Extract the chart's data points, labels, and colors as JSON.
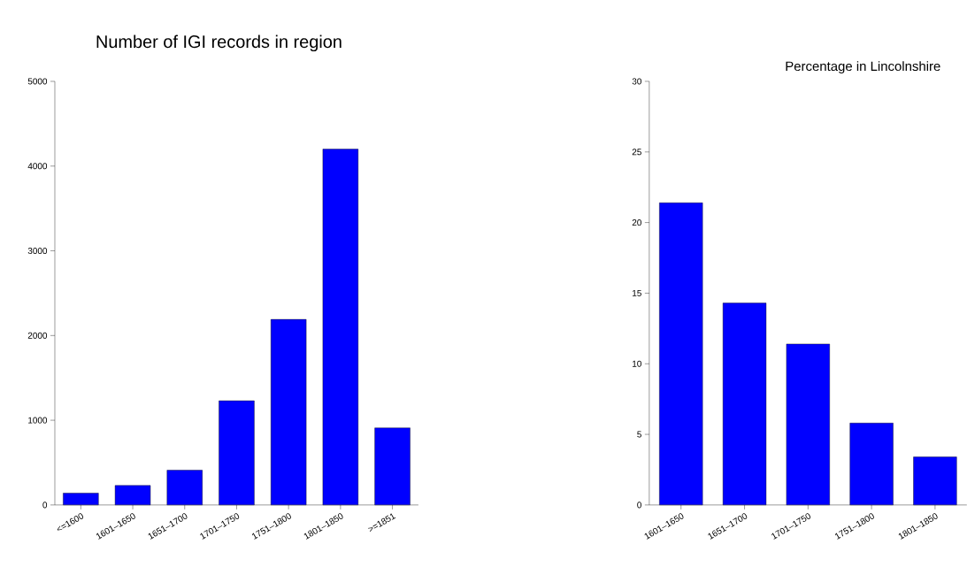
{
  "chart_data": [
    {
      "type": "bar",
      "title": "Number of IGI records in region",
      "categories": [
        "<=1600",
        "1601–1650",
        "1651–1700",
        "1701–1750",
        "1751–1800",
        "1801–1850",
        ">=1851"
      ],
      "values": [
        140,
        230,
        410,
        1230,
        2190,
        4200,
        910
      ],
      "color": "#0000ff",
      "ylim": [
        0,
        5000
      ],
      "yticks": [
        0,
        1000,
        2000,
        3000,
        4000,
        5000
      ]
    },
    {
      "type": "bar",
      "title": "Percentage in Lincolnshire",
      "categories": [
        "1601–1650",
        "1651–1700",
        "1701–1750",
        "1751–1800",
        "1801–1850"
      ],
      "values": [
        21.4,
        14.3,
        11.4,
        5.8,
        3.4
      ],
      "color": "#0000ff",
      "ylim": [
        0,
        30
      ],
      "yticks": [
        0,
        5,
        10,
        15,
        20,
        25,
        30
      ]
    }
  ]
}
